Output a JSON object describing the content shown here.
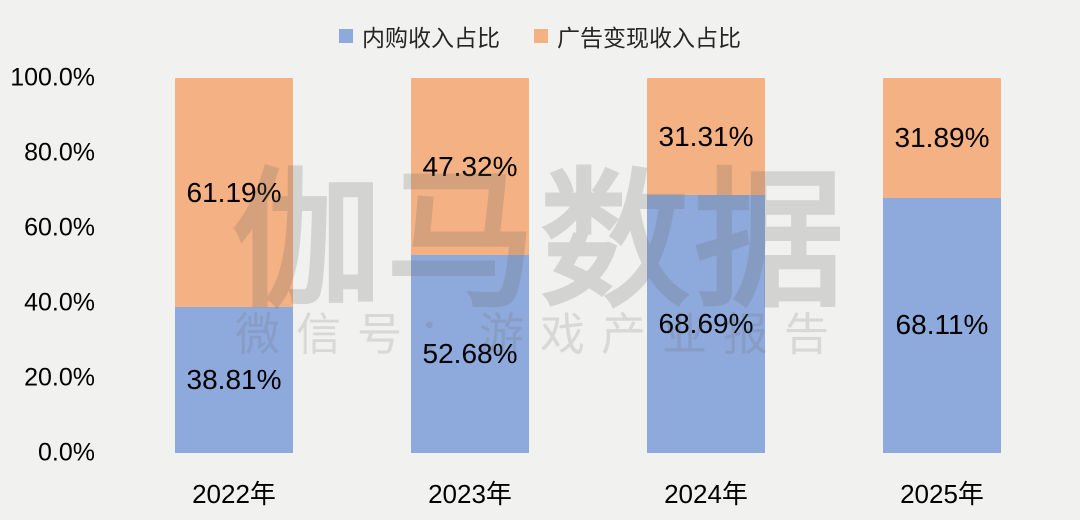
{
  "background": "#f1f1f0",
  "colors": {
    "purchase_blue": "#8ea9db",
    "ads_orange": "#f4b183",
    "label_text": "#000000",
    "legend_text": "#262626",
    "watermark_gray": "#d9d9d9"
  },
  "legend": {
    "items": [
      {
        "label": "内购收入占比",
        "color": "#8ea9db"
      },
      {
        "label": "广告变现收入占比",
        "color": "#f4b183"
      }
    ]
  },
  "y_axis": {
    "ticks": [
      "100.0%",
      "80.0%",
      "60.0%",
      "40.0%",
      "20.0%",
      "0.0%"
    ]
  },
  "watermark": {
    "title": "伽马数据",
    "subtitle": "微信号：游戏产业报告"
  },
  "chart_data": {
    "type": "bar",
    "stacked": true,
    "title": "",
    "xlabel": "",
    "ylabel": "",
    "ylim": [
      0,
      100
    ],
    "grid": false,
    "legend_position": "top",
    "categories": [
      "2022年",
      "2023年",
      "2024年",
      "2025年"
    ],
    "series": [
      {
        "name": "内购收入占比",
        "color": "#8ea9db",
        "values": [
          38.81,
          52.68,
          68.69,
          68.11
        ],
        "labels": [
          "38.81%",
          "52.68%",
          "68.69%",
          "68.11%"
        ]
      },
      {
        "name": "广告变现收入占比",
        "color": "#f4b183",
        "values": [
          61.19,
          47.32,
          31.31,
          31.89
        ],
        "labels": [
          "61.19%",
          "47.32%",
          "31.31%",
          "31.89%"
        ]
      }
    ]
  }
}
